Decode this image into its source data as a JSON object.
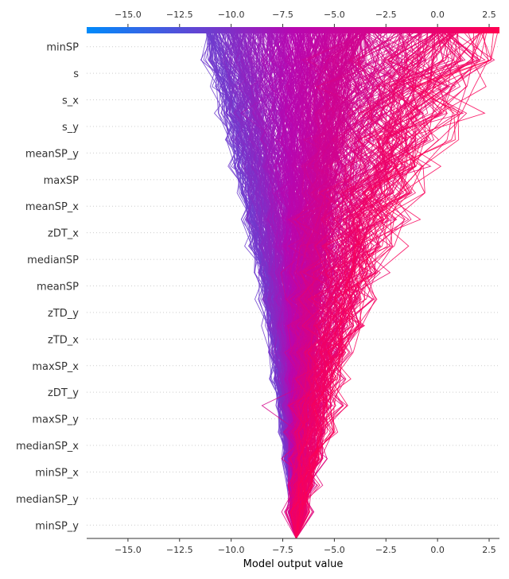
{
  "chart_data": {
    "type": "line",
    "title": "",
    "xlabel": "Model output value",
    "ylabel": "",
    "xlim": [
      -17.0,
      3.0
    ],
    "xticks": [
      -15.0,
      -12.5,
      -10.0,
      -7.5,
      -5.0,
      -2.5,
      0.0,
      2.5
    ],
    "xtick_labels": [
      "−15.0",
      "−12.5",
      "−10.0",
      "−7.5",
      "−5.0",
      "−2.5",
      "0.0",
      "2.5"
    ],
    "base_value": -6.85,
    "features": [
      "minSP",
      "s",
      "s_x",
      "s_y",
      "meanSP_y",
      "maxSP",
      "meanSP_x",
      "zDT_x",
      "medianSP",
      "meanSP",
      "zTD_y",
      "zTD_x",
      "maxSP_x",
      "zDT_y",
      "maxSP_y",
      "medianSP_x",
      "minSP_x",
      "medianSP_y",
      "minSP_y"
    ],
    "colorbar": {
      "low_color": "#008bfb",
      "mid_color": "#b707b0",
      "high_color": "#ff0051",
      "range": [
        -17.0,
        3.0
      ]
    },
    "grid": "dotted horizontal lines per feature",
    "series_summary": {
      "num_paths": "many (hundreds)",
      "final_output_range": [
        -12.5,
        3.0
      ],
      "description": "decision paths from base value at bottom to final model outputs at top"
    }
  },
  "colors": {
    "grid": "#cccccc",
    "text": "#333333",
    "axis": "#333333"
  }
}
